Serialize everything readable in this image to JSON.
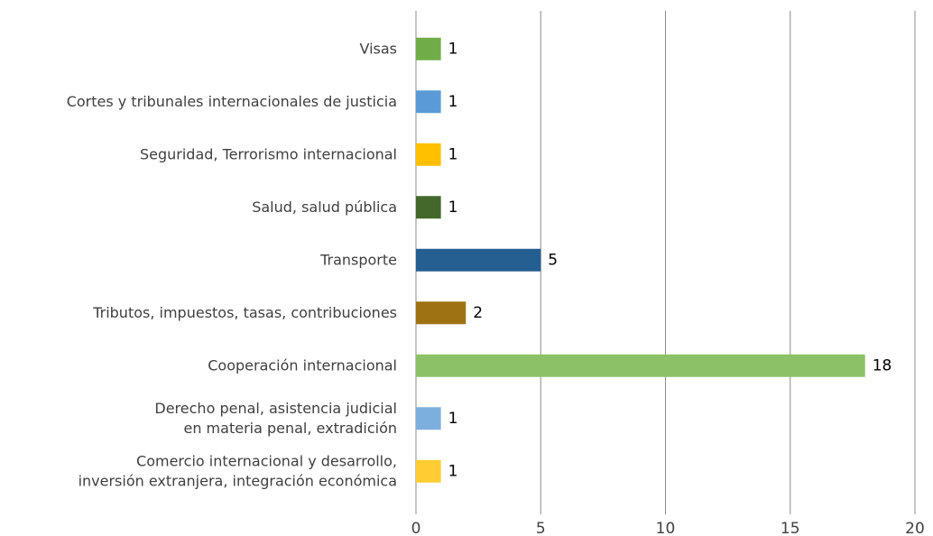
{
  "chart_data": {
    "type": "barh",
    "categories": [
      "Visas",
      "Cortes y tribunales internacionales de justicia",
      "Seguridad, Terrorismo internacional",
      "Salud, salud pública",
      "Transporte",
      "Tributos, impuestos, tasas, contribuciones",
      "Cooperación internacional",
      "Derecho penal, asistencia judicial\nen materia penal, extradición",
      "Comercio internacional y desarrollo,\ninversión extranjera, integración económica"
    ],
    "values": [
      1,
      1,
      1,
      1,
      5,
      2,
      18,
      1,
      1
    ],
    "colors": [
      "#70ad47",
      "#5b9bd5",
      "#ffc000",
      "#43682b",
      "#255e91",
      "#9e7212",
      "#8cc168",
      "#7cafdd",
      "#ffcd33"
    ],
    "xlim": [
      0,
      20
    ],
    "xticks": [
      0,
      5,
      10,
      15,
      20
    ],
    "grid": true
  }
}
